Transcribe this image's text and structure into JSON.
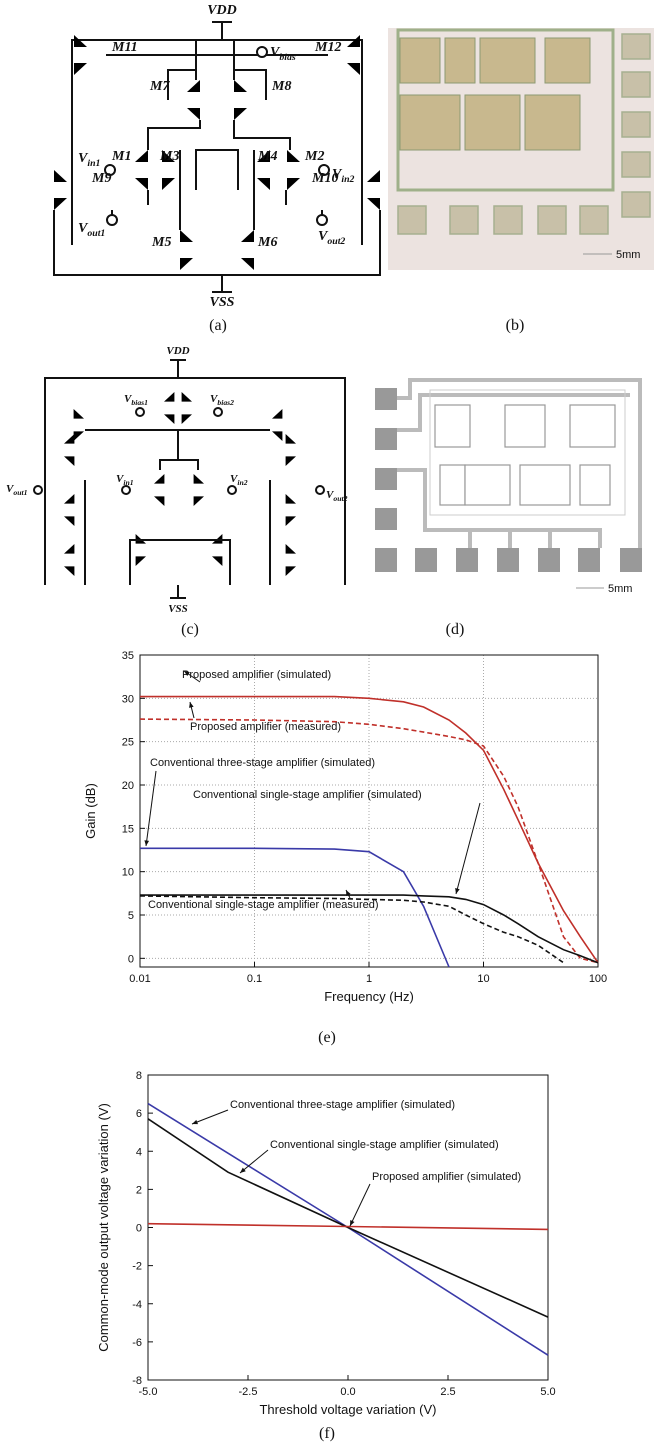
{
  "panels": {
    "a": {
      "caption": "(a)",
      "vdd": "VDD",
      "vss": "VSS",
      "m11": "M11",
      "m12": "M12",
      "m7": "M7",
      "m8": "M8",
      "m1": "M1",
      "m2": "M2",
      "m3": "M3",
      "m4": "M4",
      "m9": "M9",
      "m10": "M10",
      "m5": "M5",
      "m6": "M6",
      "vbias": {
        "base": "V",
        "sub": "bias"
      },
      "vin1": {
        "base": "V",
        "sub": "in1"
      },
      "vin2": {
        "base": "V",
        "sub": "in2"
      },
      "vout1": {
        "base": "V",
        "sub": "out1"
      },
      "vout2": {
        "base": "V",
        "sub": "out2"
      }
    },
    "b": {
      "caption": "(b)",
      "scale": "5mm"
    },
    "c": {
      "caption": "(c)",
      "vdd": "VDD",
      "vss": "VSS",
      "vbias1": {
        "base": "V",
        "sub": "bias1"
      },
      "vbias2": {
        "base": "V",
        "sub": "bias2"
      },
      "vin1": {
        "base": "V",
        "sub": "in1"
      },
      "vin2": {
        "base": "V",
        "sub": "in2"
      },
      "vout1": {
        "base": "V",
        "sub": "out1"
      },
      "vout2": {
        "base": "V",
        "sub": "out2"
      }
    },
    "d": {
      "caption": "(d)",
      "scale": "5mm"
    }
  },
  "chart_data": [
    {
      "type": "line",
      "caption": "(e)",
      "x_label": "Frequency (Hz)",
      "y_label": "Gain (dB)",
      "xscale": "log",
      "grid": true,
      "x": [
        0.01,
        0.1,
        0.5,
        1,
        2,
        3,
        5,
        7,
        10,
        15,
        20,
        30,
        50,
        70,
        100
      ],
      "xlim": [
        0.01,
        100
      ],
      "xticks": [
        0.01,
        0.1,
        1,
        10,
        100
      ],
      "ylim": [
        -1,
        35
      ],
      "yticks": [
        0,
        5,
        10,
        15,
        20,
        25,
        30,
        35
      ],
      "series": [
        {
          "name": "Proposed amplifier (simulated)",
          "color": "#c0302a",
          "linestyle": "solid",
          "values": [
            30.2,
            30.2,
            30.2,
            30.0,
            29.6,
            29.0,
            27.5,
            26,
            24,
            19.5,
            16,
            11,
            5.5,
            2.5,
            -0.5
          ]
        },
        {
          "name": "Proposed amplifier (measured)",
          "color": "#c0302a",
          "linestyle": "dashed",
          "values": [
            27.6,
            27.5,
            27.3,
            27.0,
            26.5,
            26.1,
            25.6,
            25.2,
            24.5,
            21,
            17.5,
            11,
            2.5,
            0,
            -0.5
          ]
        },
        {
          "name": "Conventional three-stage amplifier (simulated)",
          "color": "#3a3aa8",
          "linestyle": "solid",
          "values": [
            12.7,
            12.7,
            12.6,
            12.3,
            10,
            6,
            -1,
            null,
            null,
            null,
            null,
            null,
            null,
            null,
            null
          ]
        },
        {
          "name": "Conventional single-stage amplifier (simulated)",
          "color": "#111111",
          "linestyle": "solid",
          "values": [
            7.3,
            7.3,
            7.3,
            7.3,
            7.3,
            7.2,
            7.1,
            6.8,
            6.2,
            5,
            4,
            2.5,
            1,
            0.3,
            -0.5
          ]
        },
        {
          "name": "Conventional single-stage amplifier (measured)",
          "color": "#111111",
          "linestyle": "dashed",
          "values": [
            7.2,
            7.0,
            6.9,
            6.8,
            6.7,
            6.5,
            6,
            5,
            4,
            3,
            2.5,
            1.5,
            -0.5,
            null,
            null
          ]
        }
      ]
    },
    {
      "type": "line",
      "caption": "(f)",
      "x_label": "Threshold voltage variation (V)",
      "y_label": "Common-mode output voltage variation (V)",
      "grid": false,
      "x": [
        -5,
        -3,
        0,
        5
      ],
      "xlim": [
        -5,
        5
      ],
      "xticks": [
        {
          "value": -5,
          "label": "-5.0"
        },
        {
          "value": -2.5,
          "label": "-2.5"
        },
        {
          "value": 0,
          "label": "0.0"
        },
        {
          "value": 2.5,
          "label": "2.5"
        },
        {
          "value": 5,
          "label": "5.0"
        }
      ],
      "ylim": [
        -8,
        8
      ],
      "yticks": [
        -8,
        -6,
        -4,
        -2,
        0,
        2,
        4,
        6,
        8
      ],
      "series": [
        {
          "name": "Conventional three-stage amplifier (simulated)",
          "color": "#3a3aa8",
          "linestyle": "solid",
          "values": [
            6.5,
            3.9,
            0,
            -6.7
          ]
        },
        {
          "name": "Conventional single-stage amplifier (simulated)",
          "color": "#111111",
          "linestyle": "solid",
          "values": [
            5.7,
            2.9,
            0,
            -4.7
          ]
        },
        {
          "name": "Proposed amplifier (simulated)",
          "color": "#c0302a",
          "linestyle": "solid",
          "values": [
            0.2,
            0.14,
            0.05,
            -0.1
          ]
        }
      ]
    }
  ]
}
